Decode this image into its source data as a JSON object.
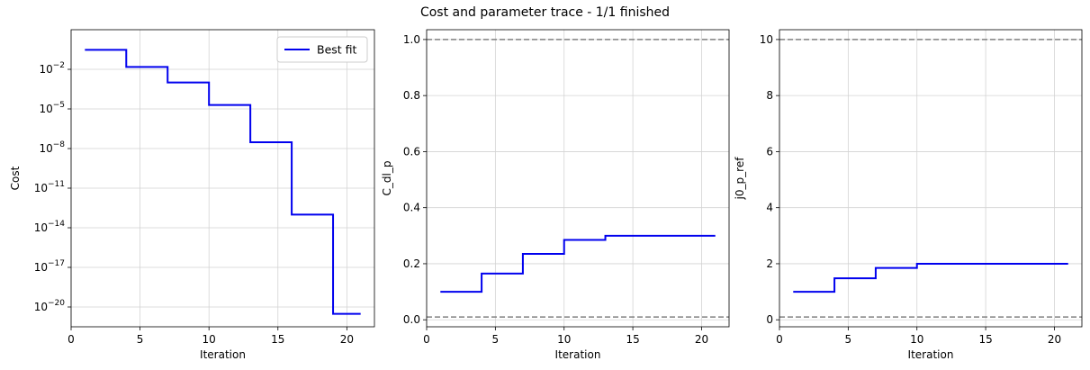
{
  "suptitle": "Cost and parameter trace - 1/1 finished",
  "colors": {
    "series": "#0000ee",
    "bound": "#808080",
    "grid": "#d3d3d3"
  },
  "chart_data": [
    {
      "type": "line",
      "step": true,
      "title": "",
      "xlabel": "Iteration",
      "ylabel": "Cost",
      "yscale": "log",
      "xlim": [
        0,
        22
      ],
      "ylim_log10": [
        -21.5,
        1
      ],
      "xticks": [
        0,
        5,
        10,
        15,
        20
      ],
      "yticks_log10": [
        -2,
        -5,
        -8,
        -11,
        -14,
        -17,
        -20
      ],
      "yticklabels": [
        "10",
        "10",
        "10",
        "10",
        "10",
        "10",
        "10"
      ],
      "ytickexps": [
        "−2",
        "−5",
        "−8",
        "−11",
        "−14",
        "−17",
        "−20"
      ],
      "grid": true,
      "legend": {
        "placement": "top-right",
        "entries": [
          "Best fit"
        ]
      },
      "series": [
        {
          "name": "Best fit",
          "x": [
            1,
            4,
            7,
            10,
            13,
            16,
            19,
            21
          ],
          "y": [
            0.3,
            0.015,
            0.001,
            2e-05,
            3e-08,
            1e-13,
            3e-21,
            3e-21
          ]
        }
      ],
      "hlines": []
    },
    {
      "type": "line",
      "step": true,
      "title": "",
      "xlabel": "Iteration",
      "ylabel": "C_dl_p",
      "yscale": "linear",
      "xlim": [
        0,
        22
      ],
      "ylim": [
        -0.025,
        1.035
      ],
      "xticks": [
        0,
        5,
        10,
        15,
        20
      ],
      "yticks": [
        0.0,
        0.2,
        0.4,
        0.6,
        0.8,
        1.0
      ],
      "yticklabels": [
        "0.0",
        "0.2",
        "0.4",
        "0.6",
        "0.8",
        "1.0"
      ],
      "grid": true,
      "legend": null,
      "series": [
        {
          "x": [
            1,
            4,
            7,
            10,
            13,
            21
          ],
          "y": [
            0.1,
            0.165,
            0.235,
            0.285,
            0.3,
            0.3
          ]
        }
      ],
      "hlines": [
        0.01,
        1.0
      ]
    },
    {
      "type": "line",
      "step": true,
      "title": "",
      "xlabel": "Iteration",
      "ylabel": "j0_p_ref",
      "yscale": "linear",
      "xlim": [
        0,
        22
      ],
      "ylim": [
        -0.25,
        10.35
      ],
      "xticks": [
        0,
        5,
        10,
        15,
        20
      ],
      "yticks": [
        0,
        2,
        4,
        6,
        8,
        10
      ],
      "yticklabels": [
        "0",
        "2",
        "4",
        "6",
        "8",
        "10"
      ],
      "grid": true,
      "legend": null,
      "series": [
        {
          "x": [
            1,
            4,
            7,
            10,
            21
          ],
          "y": [
            1.0,
            1.48,
            1.85,
            2.0,
            2.0
          ]
        }
      ],
      "hlines": [
        0.1,
        10.0
      ]
    }
  ]
}
